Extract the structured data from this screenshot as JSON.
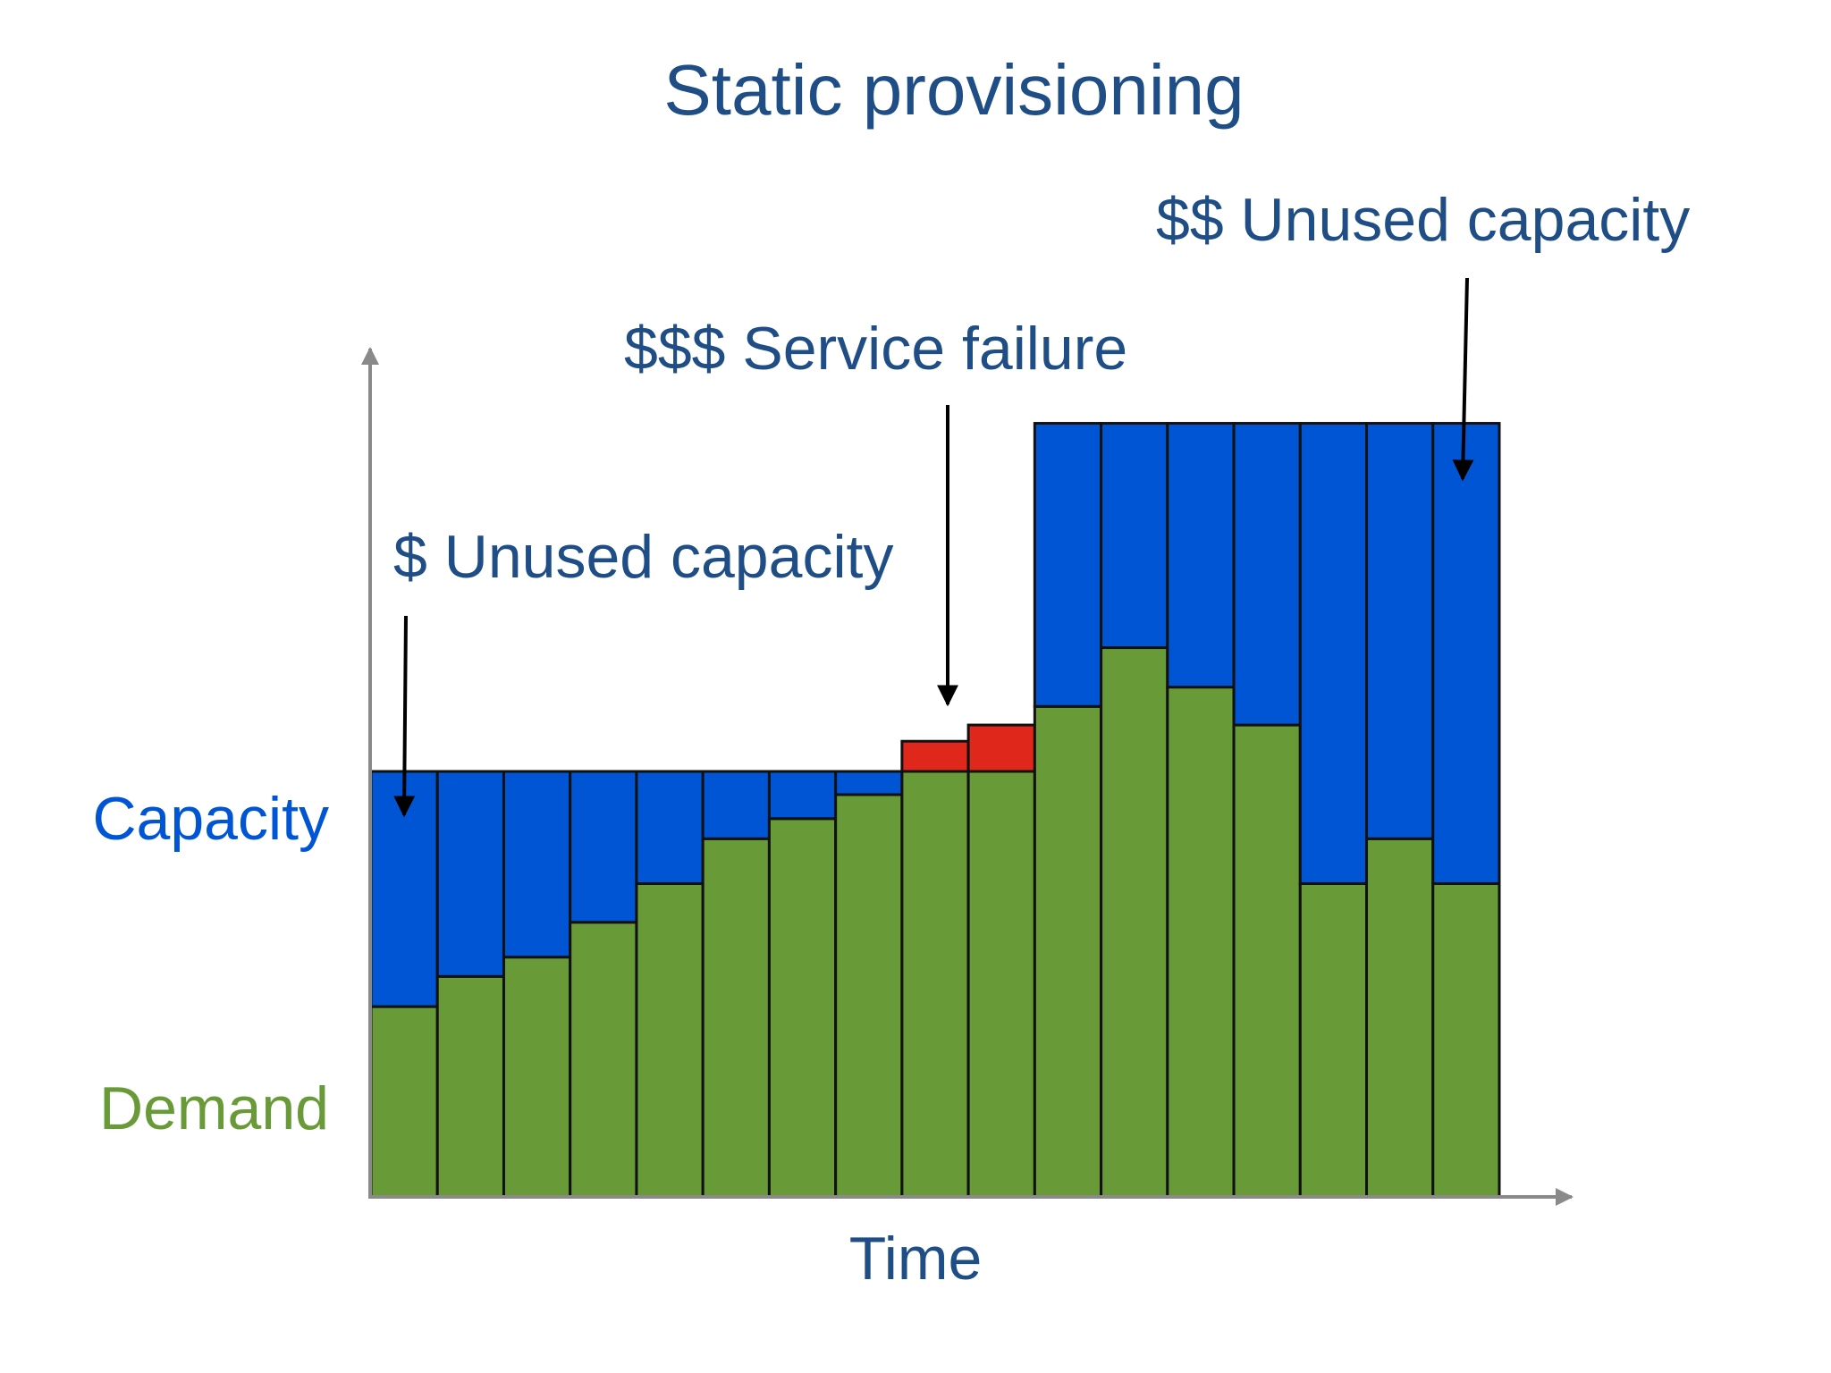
{
  "chart_data": {
    "type": "provisioning",
    "title": "Static provisioning",
    "x_label": "Time",
    "annotations": [
      "$ Unused capacity",
      "$$$ Service failure",
      "$$ Unused capacity"
    ],
    "categories": [
      null,
      null,
      null,
      null,
      null,
      null,
      null,
      null,
      null,
      null,
      null,
      null,
      null,
      null,
      null,
      null,
      null
    ],
    "series": [
      {
        "name": "Capacity",
        "color": "#0055d4",
        "values": [
          55,
          55,
          55,
          55,
          55,
          55,
          55,
          55,
          55,
          55,
          100,
          100,
          100,
          100,
          100,
          100,
          100
        ]
      },
      {
        "name": "Demand",
        "color": "#689a37",
        "values": [
          24.6,
          28.5,
          31,
          35.5,
          40.5,
          46.3,
          48.9,
          52,
          58.9,
          61,
          63.4,
          71,
          65.9,
          61,
          40.5,
          46.3,
          40.5
        ]
      }
    ],
    "shortfall_color": "#e0271c",
    "ylim": [
      0,
      110
    ]
  }
}
